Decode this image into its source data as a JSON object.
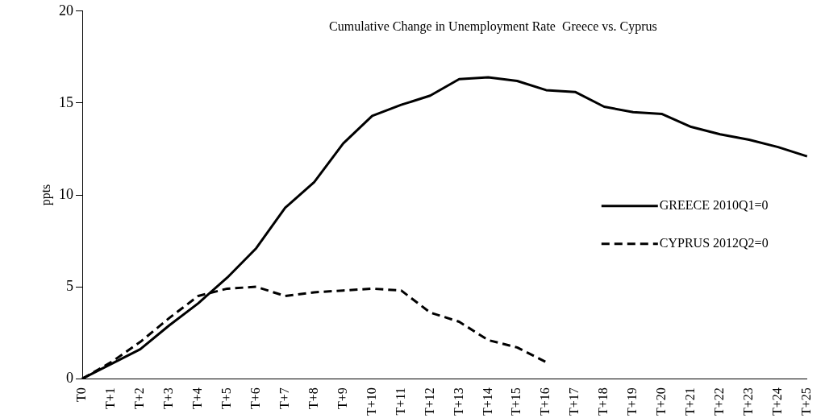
{
  "chart_data": {
    "type": "line",
    "title": "Cumulative Change in Unemployment Rate  Greece vs. Cyprus",
    "ylabel": "ppts",
    "categories": [
      "T0",
      "T+1",
      "T+2",
      "T+3",
      "T+4",
      "T+5",
      "T+6",
      "T+7",
      "T+8",
      "T+9",
      "T+10",
      "T+11",
      "T+12",
      "T+13",
      "T+14",
      "T+15",
      "T+16",
      "T+17",
      "T+18",
      "T+19",
      "T+20",
      "T+21",
      "T+22",
      "T+23",
      "T+24",
      "T+25"
    ],
    "series": [
      {
        "name": "GREECE 2010Q1=0",
        "color": "#000000",
        "line_style": "solid",
        "values": [
          0,
          0.8,
          1.6,
          2.9,
          4.1,
          5.5,
          7.1,
          9.3,
          10.7,
          12.8,
          14.3,
          14.9,
          15.4,
          16.3,
          16.4,
          16.2,
          15.7,
          15.6,
          14.8,
          14.5,
          14.4,
          13.7,
          13.3,
          13.0,
          12.6,
          12.1
        ]
      },
      {
        "name": "CYPRUS 2012Q2=0",
        "color": "#000000",
        "line_style": "dashed",
        "values": [
          0,
          0.9,
          2.0,
          3.3,
          4.5,
          4.9,
          5.0,
          4.5,
          4.7,
          4.8,
          4.9,
          4.8,
          3.6,
          3.1,
          2.1,
          1.7,
          0.9,
          null,
          null,
          null,
          null,
          null,
          null,
          null,
          null,
          null
        ]
      }
    ],
    "ylim": [
      0,
      20
    ],
    "yticks": [
      0,
      5,
      10,
      15,
      20
    ],
    "grid": false,
    "legend": "right",
    "marker": "none"
  }
}
